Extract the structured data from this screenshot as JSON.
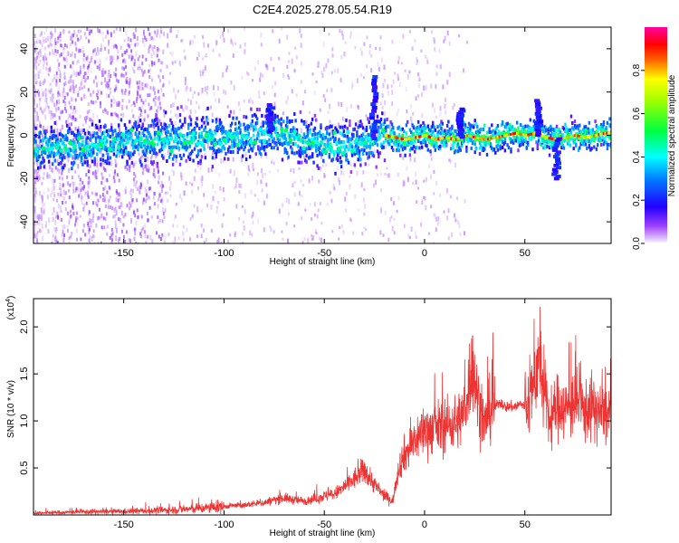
{
  "title": "C2E4.2025.278.05.54.R19",
  "chart_data": [
    {
      "type": "heatmap",
      "name": "spectrogram",
      "xlabel": "Height of straight line (km)",
      "ylabel": "Frequency (Hz)",
      "xlim": [
        -195,
        93
      ],
      "ylim": [
        -50,
        50
      ],
      "xticks": [
        -150,
        -100,
        -50,
        0,
        50
      ],
      "xtick_labels": [
        "-150",
        "-100",
        "-50",
        "0",
        "50"
      ],
      "yticks": [
        -40,
        -20,
        0,
        20,
        40
      ],
      "ytick_labels": [
        "-40",
        "-20",
        "0",
        "20",
        "40"
      ],
      "colorbar": {
        "label": "Normalized spectral amplitude",
        "range": [
          0,
          1
        ],
        "ticks": [
          0.0,
          0.2,
          0.4,
          0.6,
          0.8
        ],
        "tick_labels": [
          "0.0",
          "0.2",
          "0.4",
          "0.6",
          "0.8"
        ],
        "colormap": [
          "#ffffff",
          "#c080ff",
          "#8000ff",
          "#0000ff",
          "#00ffff",
          "#00ff00",
          "#ffff00",
          "#ff0000",
          "#ff00ff"
        ]
      },
      "ridge_center_hz": [
        [
          -190,
          -6
        ],
        [
          -180,
          -5
        ],
        [
          -170,
          -6
        ],
        [
          -160,
          -4
        ],
        [
          -150,
          -3
        ],
        [
          -140,
          -3
        ],
        [
          -130,
          -2
        ],
        [
          -120,
          -2
        ],
        [
          -110,
          -1
        ],
        [
          -100,
          -1
        ],
        [
          -90,
          -1
        ],
        [
          -80,
          1
        ],
        [
          -75,
          2
        ],
        [
          -70,
          0
        ],
        [
          -60,
          -2
        ],
        [
          -50,
          -4
        ],
        [
          -40,
          -5
        ],
        [
          -30,
          -3
        ],
        [
          -20,
          0
        ],
        [
          -15,
          -1
        ],
        [
          -10,
          -2
        ],
        [
          -5,
          -1
        ],
        [
          0,
          0
        ],
        [
          5,
          -2
        ],
        [
          10,
          -1
        ],
        [
          15,
          -2
        ],
        [
          20,
          0
        ],
        [
          25,
          -1
        ],
        [
          30,
          -2
        ],
        [
          35,
          -1
        ],
        [
          40,
          0
        ],
        [
          45,
          1
        ],
        [
          50,
          0
        ],
        [
          55,
          1
        ],
        [
          60,
          -1
        ],
        [
          65,
          -2
        ],
        [
          70,
          -1
        ],
        [
          75,
          0
        ],
        [
          80,
          -1
        ],
        [
          85,
          0
        ],
        [
          90,
          1
        ]
      ],
      "notable_features": [
        {
          "x": -25,
          "peak_hz": 27
        },
        {
          "x": -77,
          "peak_hz": 14
        },
        {
          "x": 18,
          "peak_hz": 12
        },
        {
          "x": 57,
          "peak_hz": 16
        },
        {
          "x": 66,
          "peak_hz": -20
        }
      ]
    },
    {
      "type": "line",
      "name": "snr",
      "xlabel": "Height of straight line (km)",
      "ylabel": "SNR (10 * v/v)",
      "y_multiplier_label": "(x10",
      "y_multiplier_exp": "4",
      "y_multiplier_close": ")",
      "xlim": [
        -195,
        93
      ],
      "ylim": [
        0,
        23000
      ],
      "xticks": [
        -150,
        -100,
        -50,
        0,
        50
      ],
      "xtick_labels": [
        "-150",
        "-100",
        "-50",
        "0",
        "50"
      ],
      "yticks": [
        5000,
        10000,
        15000,
        20000
      ],
      "ytick_labels": [
        "0.5",
        "1.0",
        "1.5",
        "2.0"
      ],
      "series_color": "#ee3333",
      "series": [
        {
          "name": "SNR",
          "x": [
            -195,
            -185,
            -175,
            -165,
            -155,
            -145,
            -135,
            -125,
            -115,
            -105,
            -100,
            -95,
            -90,
            -85,
            -80,
            -75,
            -70,
            -65,
            -60,
            -55,
            -50,
            -45,
            -40,
            -36,
            -33,
            -30,
            -27,
            -24,
            -21,
            -18,
            -16,
            -13,
            -10,
            -7,
            -4,
            0,
            4,
            8,
            12,
            16,
            20,
            22,
            24,
            26,
            28,
            30,
            32,
            35,
            38,
            40,
            42,
            45,
            48,
            50,
            52,
            54,
            56,
            58,
            60,
            62,
            64,
            66,
            68,
            70,
            72,
            75,
            78,
            80,
            83,
            86,
            90,
            93
          ],
          "y": [
            200,
            250,
            300,
            350,
            350,
            400,
            450,
            550,
            650,
            800,
            900,
            1000,
            1000,
            1200,
            1300,
            1600,
            1800,
            1600,
            1500,
            1700,
            2000,
            2200,
            3000,
            3600,
            4200,
            4800,
            3800,
            3000,
            2200,
            1800,
            1400,
            5000,
            6500,
            7200,
            8200,
            9000,
            9200,
            9400,
            9600,
            9800,
            11000,
            14000,
            16000,
            13000,
            11000,
            9500,
            11000,
            11500,
            12000,
            11500,
            11500,
            11500,
            11800,
            11500,
            12000,
            13500,
            16000,
            15500,
            12500,
            10000,
            10500,
            11500,
            12000,
            11000,
            11500,
            12000,
            11500,
            11000,
            11500,
            11000,
            10500,
            11000
          ]
        }
      ]
    }
  ]
}
